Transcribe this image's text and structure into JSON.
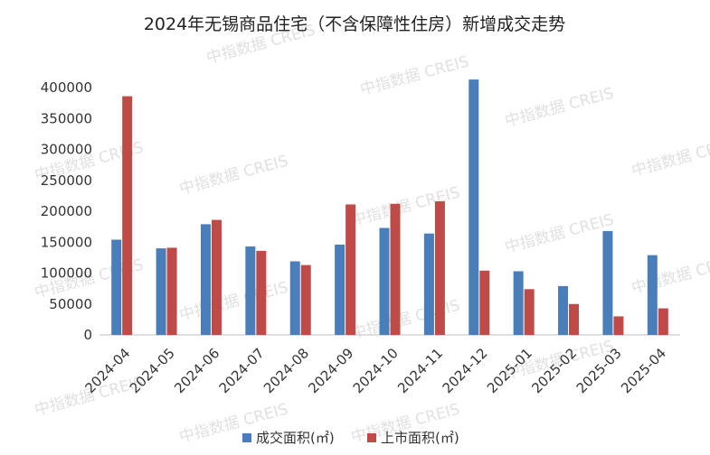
{
  "chart_data": {
    "type": "bar",
    "title": "2024年无锡商品住宅（不含保障性住房）新增成交走势",
    "categories": [
      "2024-04",
      "2024-05",
      "2024-06",
      "2024-07",
      "2024-08",
      "2024-09",
      "2024-10",
      "2024-11",
      "2024-12",
      "2025-01",
      "2025-02",
      "2025-03",
      "2025-04"
    ],
    "series": [
      {
        "name": "成交面积(㎡)",
        "color": "#4a7ebb",
        "values": [
          154000,
          140000,
          179000,
          143000,
          119000,
          146000,
          173000,
          164000,
          413000,
          103000,
          79000,
          168000,
          129000
        ]
      },
      {
        "name": "上市面积(㎡)",
        "color": "#be4b48",
        "values": [
          386000,
          141000,
          186000,
          136000,
          113000,
          211000,
          212000,
          216000,
          104000,
          74000,
          50000,
          30000,
          43000
        ]
      }
    ],
    "y_ticks": [
      "0",
      "50000",
      "100000",
      "150000",
      "200000",
      "250000",
      "300000",
      "350000",
      "400000"
    ],
    "ylim": [
      0,
      400000
    ],
    "legend_position": "bottom-right",
    "grid": false,
    "watermark": "中指数据 CREIS"
  }
}
